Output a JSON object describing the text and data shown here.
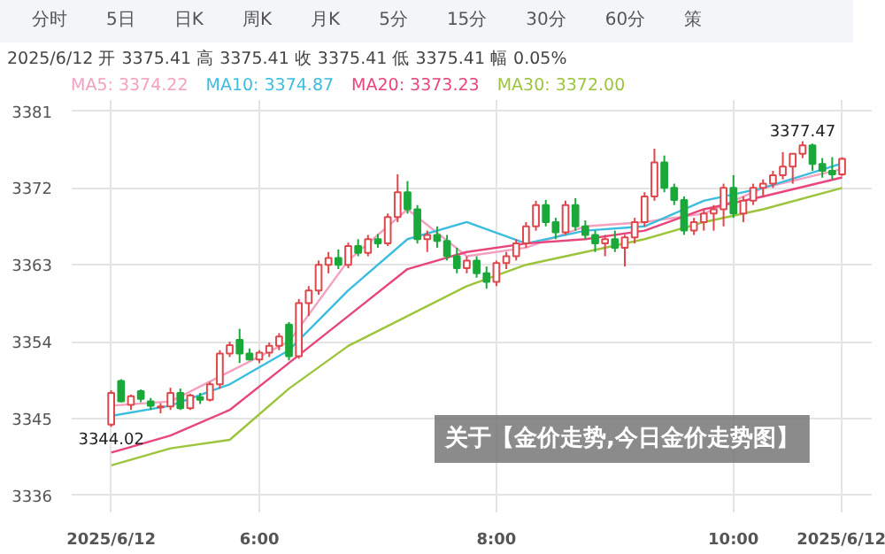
{
  "chart_data": {
    "type": "candlestick",
    "title": "关于【金价走势,今日金价走势图】",
    "subtitle": "2025/6/12 开 3375.41 高 3375.41 收 3375.41 低 3375.41 幅 0.05%",
    "annotations": [
      "分时",
      "5日",
      "日K",
      "周K",
      "月K",
      "5分",
      "15分",
      "30分",
      "60分",
      "策",
      {
        "text": "3377.47",
        "x": "2025-06-12T10:35",
        "y": 3377.47
      },
      {
        "text": "3344.02",
        "x": "2025-06-12T04:45",
        "y": 3344.02
      }
    ],
    "x": [
      "2025-06-12T04:45",
      "2025-06-12T04:50",
      "2025-06-12T04:55",
      "2025-06-12T05:00",
      "2025-06-12T05:05",
      "2025-06-12T05:10",
      "2025-06-12T05:15",
      "2025-06-12T05:20",
      "2025-06-12T05:25",
      "2025-06-12T05:30",
      "2025-06-12T05:35",
      "2025-06-12T05:40",
      "2025-06-12T05:45",
      "2025-06-12T05:50",
      "2025-06-12T05:55",
      "2025-06-12T06:00",
      "2025-06-12T06:05",
      "2025-06-12T06:10",
      "2025-06-12T06:15",
      "2025-06-12T06:20",
      "2025-06-12T06:25",
      "2025-06-12T06:30",
      "2025-06-12T06:35",
      "2025-06-12T06:40",
      "2025-06-12T06:45",
      "2025-06-12T06:50",
      "2025-06-12T06:55",
      "2025-06-12T07:00",
      "2025-06-12T07:05",
      "2025-06-12T07:10",
      "2025-06-12T07:15",
      "2025-06-12T07:20",
      "2025-06-12T07:25",
      "2025-06-12T07:30",
      "2025-06-12T07:35",
      "2025-06-12T07:40",
      "2025-06-12T07:45",
      "2025-06-12T07:50",
      "2025-06-12T07:55",
      "2025-06-12T08:00",
      "2025-06-12T08:05",
      "2025-06-12T08:10",
      "2025-06-12T08:15",
      "2025-06-12T08:20",
      "2025-06-12T08:25",
      "2025-06-12T08:30",
      "2025-06-12T08:35",
      "2025-06-12T08:40",
      "2025-06-12T08:45",
      "2025-06-12T08:50",
      "2025-06-12T08:55",
      "2025-06-12T09:00",
      "2025-06-12T09:05",
      "2025-06-12T09:10",
      "2025-06-12T09:15",
      "2025-06-12T09:20",
      "2025-06-12T09:25",
      "2025-06-12T09:30",
      "2025-06-12T09:35",
      "2025-06-12T09:40",
      "2025-06-12T09:45",
      "2025-06-12T09:50",
      "2025-06-12T09:55",
      "2025-06-12T10:00",
      "2025-06-12T10:05",
      "2025-06-12T10:10",
      "2025-06-12T10:15",
      "2025-06-12T10:20",
      "2025-06-12T10:25",
      "2025-06-12T10:30",
      "2025-06-12T10:35",
      "2025-06-12T10:40",
      "2025-06-12T10:45",
      "2025-06-12T10:50",
      "2025-06-12T10:55"
    ],
    "ohlc": [
      [
        3344.3,
        3348.3,
        3344.02,
        3348.0
      ],
      [
        3349.4,
        3349.6,
        3346.9,
        3347.0
      ],
      [
        3346.6,
        3347.8,
        3346.0,
        3347.6
      ],
      [
        3348.2,
        3348.4,
        3346.9,
        3347.3
      ],
      [
        3347.0,
        3347.4,
        3346.0,
        3346.5
      ],
      [
        3346.3,
        3346.8,
        3345.6,
        3346.4
      ],
      [
        3346.4,
        3348.6,
        3346.0,
        3348.0
      ],
      [
        3348.0,
        3348.5,
        3346.0,
        3346.2
      ],
      [
        3346.2,
        3347.9,
        3346.0,
        3347.7
      ],
      [
        3347.5,
        3348.0,
        3346.7,
        3347.2
      ],
      [
        3347.2,
        3349.3,
        3347.0,
        3349.0
      ],
      [
        3349.0,
        3353.0,
        3348.5,
        3352.6
      ],
      [
        3352.6,
        3354.0,
        3352.2,
        3353.6
      ],
      [
        3354.2,
        3355.5,
        3351.5,
        3352.6
      ],
      [
        3352.6,
        3353.2,
        3351.8,
        3351.9
      ],
      [
        3351.9,
        3353.0,
        3351.5,
        3352.7
      ],
      [
        3352.7,
        3353.9,
        3352.2,
        3353.5
      ],
      [
        3353.5,
        3355.0,
        3353.0,
        3354.6
      ],
      [
        3356.0,
        3356.3,
        3351.8,
        3352.3
      ],
      [
        3352.3,
        3359.0,
        3352.0,
        3358.5
      ],
      [
        3358.5,
        3360.5,
        3357.0,
        3360.0
      ],
      [
        3360.0,
        3363.5,
        3359.5,
        3363.0
      ],
      [
        3363.0,
        3364.5,
        3362.0,
        3363.8
      ],
      [
        3363.8,
        3364.8,
        3362.5,
        3363.0
      ],
      [
        3363.0,
        3365.6,
        3362.6,
        3365.2
      ],
      [
        3365.2,
        3366.0,
        3364.0,
        3364.4
      ],
      [
        3364.4,
        3366.5,
        3364.0,
        3366.0
      ],
      [
        3366.0,
        3366.6,
        3365.0,
        3365.5
      ],
      [
        3365.5,
        3369.0,
        3365.2,
        3368.6
      ],
      [
        3368.6,
        3373.6,
        3368.0,
        3371.5
      ],
      [
        3371.5,
        3372.8,
        3369.0,
        3369.5
      ],
      [
        3369.5,
        3370.0,
        3365.5,
        3366.0
      ],
      [
        3366.0,
        3367.0,
        3364.5,
        3366.5
      ],
      [
        3366.5,
        3367.5,
        3365.0,
        3365.8
      ],
      [
        3365.8,
        3366.5,
        3363.5,
        3364.0
      ],
      [
        3364.0,
        3365.0,
        3362.0,
        3362.6
      ],
      [
        3362.6,
        3364.0,
        3362.0,
        3363.5
      ],
      [
        3363.5,
        3364.0,
        3361.5,
        3362.0
      ],
      [
        3362.0,
        3362.8,
        3360.2,
        3361.0
      ],
      [
        3361.0,
        3363.5,
        3360.5,
        3363.2
      ],
      [
        3363.2,
        3364.5,
        3362.5,
        3364.0
      ],
      [
        3364.0,
        3366.0,
        3363.5,
        3365.5
      ],
      [
        3365.5,
        3368.0,
        3365.0,
        3367.5
      ],
      [
        3367.5,
        3370.5,
        3367.0,
        3370.0
      ],
      [
        3370.0,
        3370.6,
        3367.5,
        3368.0
      ],
      [
        3368.0,
        3368.5,
        3366.0,
        3366.8
      ],
      [
        3366.8,
        3370.5,
        3366.5,
        3370.0
      ],
      [
        3370.0,
        3370.8,
        3367.0,
        3367.5
      ],
      [
        3367.5,
        3368.2,
        3366.0,
        3366.5
      ],
      [
        3366.5,
        3367.0,
        3364.5,
        3365.5
      ],
      [
        3365.5,
        3366.5,
        3364.0,
        3366.0
      ],
      [
        3366.0,
        3367.0,
        3364.5,
        3365.0
      ],
      [
        3365.0,
        3366.5,
        3362.8,
        3366.2
      ],
      [
        3366.2,
        3368.5,
        3365.5,
        3368.0
      ],
      [
        3368.0,
        3371.5,
        3367.5,
        3371.0
      ],
      [
        3371.0,
        3376.6,
        3370.5,
        3375.0
      ],
      [
        3375.0,
        3375.8,
        3371.5,
        3372.0
      ],
      [
        3372.0,
        3372.5,
        3370.0,
        3370.6
      ],
      [
        3370.6,
        3371.0,
        3366.5,
        3367.0
      ],
      [
        3367.0,
        3368.5,
        3366.5,
        3368.0
      ],
      [
        3368.0,
        3369.5,
        3367.0,
        3369.0
      ],
      [
        3369.0,
        3370.0,
        3367.0,
        3369.5
      ],
      [
        3369.5,
        3372.5,
        3367.5,
        3372.0
      ],
      [
        3372.0,
        3373.5,
        3368.5,
        3369.0
      ],
      [
        3369.0,
        3371.0,
        3368.0,
        3370.5
      ],
      [
        3370.5,
        3372.5,
        3370.0,
        3372.0
      ],
      [
        3372.0,
        3373.0,
        3371.0,
        3372.5
      ],
      [
        3372.5,
        3374.0,
        3372.0,
        3373.5
      ],
      [
        3373.5,
        3376.2,
        3373.0,
        3374.5
      ],
      [
        3374.5,
        3376.0,
        3372.5,
        3376.0
      ],
      [
        3376.0,
        3377.47,
        3375.5,
        3377.0
      ],
      [
        3377.0,
        3377.2,
        3374.0,
        3374.8
      ],
      [
        3374.8,
        3375.5,
        3373.2,
        3374.0
      ],
      [
        3374.0,
        3375.6,
        3373.0,
        3373.6
      ],
      [
        3373.6,
        3375.6,
        3373.4,
        3375.41
      ]
    ],
    "colors": [
      "#e0474c",
      "#1aa83a",
      "#e0474c",
      "#1aa83a",
      "#1aa83a",
      "#e0474c",
      "#e0474c",
      "#1aa83a",
      "#e0474c",
      "#1aa83a",
      "#e0474c",
      "#e0474c",
      "#e0474c",
      "#1aa83a",
      "#1aa83a",
      "#e0474c",
      "#e0474c",
      "#e0474c",
      "#1aa83a",
      "#e0474c",
      "#e0474c",
      "#e0474c",
      "#e0474c",
      "#1aa83a",
      "#e0474c",
      "#1aa83a",
      "#e0474c",
      "#1aa83a",
      "#e0474c",
      "#e0474c",
      "#1aa83a",
      "#1aa83a",
      "#e0474c",
      "#1aa83a",
      "#1aa83a",
      "#1aa83a",
      "#e0474c",
      "#1aa83a",
      "#1aa83a",
      "#e0474c",
      "#e0474c",
      "#e0474c",
      "#e0474c",
      "#e0474c",
      "#1aa83a",
      "#1aa83a",
      "#e0474c",
      "#1aa83a",
      "#1aa83a",
      "#1aa83a",
      "#e0474c",
      "#1aa83a",
      "#e0474c",
      "#e0474c",
      "#e0474c",
      "#e0474c",
      "#1aa83a",
      "#1aa83a",
      "#1aa83a",
      "#e0474c",
      "#e0474c",
      "#e0474c",
      "#e0474c",
      "#1aa83a",
      "#e0474c",
      "#e0474c",
      "#e0474c",
      "#e0474c",
      "#e0474c",
      "#e0474c",
      "#e0474c",
      "#1aa83a",
      "#1aa83a",
      "#1aa83a",
      "#e0474c"
    ],
    "series": [
      {
        "name": "MA5: 3374.22",
        "color": "#f4a0c0",
        "type": "line",
        "x": [
          "2025-06-12T04:45",
          "2025-06-12T05:15",
          "2025-06-12T05:45",
          "2025-06-12T06:15",
          "2025-06-12T06:45",
          "2025-06-12T07:15",
          "2025-06-12T07:45",
          "2025-06-12T08:15",
          "2025-06-12T08:45",
          "2025-06-12T09:15",
          "2025-06-12T09:45",
          "2025-06-12T10:15",
          "2025-06-12T10:55"
        ],
        "values": [
          3346.5,
          3347,
          3350.5,
          3354,
          3363.5,
          3369.5,
          3364,
          3365,
          3367.5,
          3368,
          3369,
          3372,
          3374.22
        ]
      },
      {
        "name": "MA10: 3374.87",
        "color": "#3cbde0",
        "type": "line",
        "x": [
          "2025-06-12T04:45",
          "2025-06-12T05:15",
          "2025-06-12T05:45",
          "2025-06-12T06:15",
          "2025-06-12T06:45",
          "2025-06-12T07:15",
          "2025-06-12T07:45",
          "2025-06-12T08:15",
          "2025-06-12T08:45",
          "2025-06-12T09:15",
          "2025-06-12T09:45",
          "2025-06-12T10:15",
          "2025-06-12T10:55"
        ],
        "values": [
          3345.3,
          3346.5,
          3349,
          3353,
          3360,
          3366,
          3368,
          3365.5,
          3367,
          3367.5,
          3370.5,
          3372,
          3374.87
        ]
      },
      {
        "name": "MA20: 3373.23",
        "color": "#e8457a",
        "type": "line",
        "x": [
          "2025-06-12T04:45",
          "2025-06-12T05:15",
          "2025-06-12T05:45",
          "2025-06-12T06:15",
          "2025-06-12T06:45",
          "2025-06-12T07:15",
          "2025-06-12T07:45",
          "2025-06-12T08:15",
          "2025-06-12T08:45",
          "2025-06-12T09:15",
          "2025-06-12T09:45",
          "2025-06-12T10:15",
          "2025-06-12T10:55"
        ],
        "values": [
          3341,
          3343,
          3346,
          3351.5,
          3357,
          3362.5,
          3364.5,
          3365.5,
          3366,
          3367,
          3369.5,
          3371,
          3373.23
        ]
      },
      {
        "name": "MA30: 3372.00",
        "color": "#9cc43c",
        "type": "line",
        "x": [
          "2025-06-12T04:45",
          "2025-06-12T05:15",
          "2025-06-12T05:45",
          "2025-06-12T06:15",
          "2025-06-12T06:45",
          "2025-06-12T07:15",
          "2025-06-12T07:45",
          "2025-06-12T08:15",
          "2025-06-12T08:45",
          "2025-06-12T09:15",
          "2025-06-12T09:45",
          "2025-06-12T10:15",
          "2025-06-12T10:55"
        ],
        "values": [
          3339.5,
          3341.5,
          3342.5,
          3348.5,
          3353.5,
          3357,
          3360.5,
          3363,
          3364.5,
          3366,
          3368,
          3369.5,
          3372.0
        ]
      }
    ],
    "xlim": [
      "2025-06-12T04:25",
      "2025-06-12T11:10"
    ],
    "xticks": [
      {
        "value": "2025-06-12T04:45",
        "label": "2025/6/12"
      },
      {
        "value": "2025-06-12T06:00",
        "label": "6:00"
      },
      {
        "value": "2025-06-12T08:00",
        "label": "8:00"
      },
      {
        "value": "2025-06-12T10:00",
        "label": "10:00"
      },
      {
        "value": "2025-06-12T10:55",
        "label": "2025/6/12"
      }
    ],
    "ylim": [
      3334,
      3382.3
    ],
    "yticks": [
      3336,
      3345,
      3354,
      3363,
      3372,
      3381
    ],
    "grid": true,
    "legend": "top"
  }
}
